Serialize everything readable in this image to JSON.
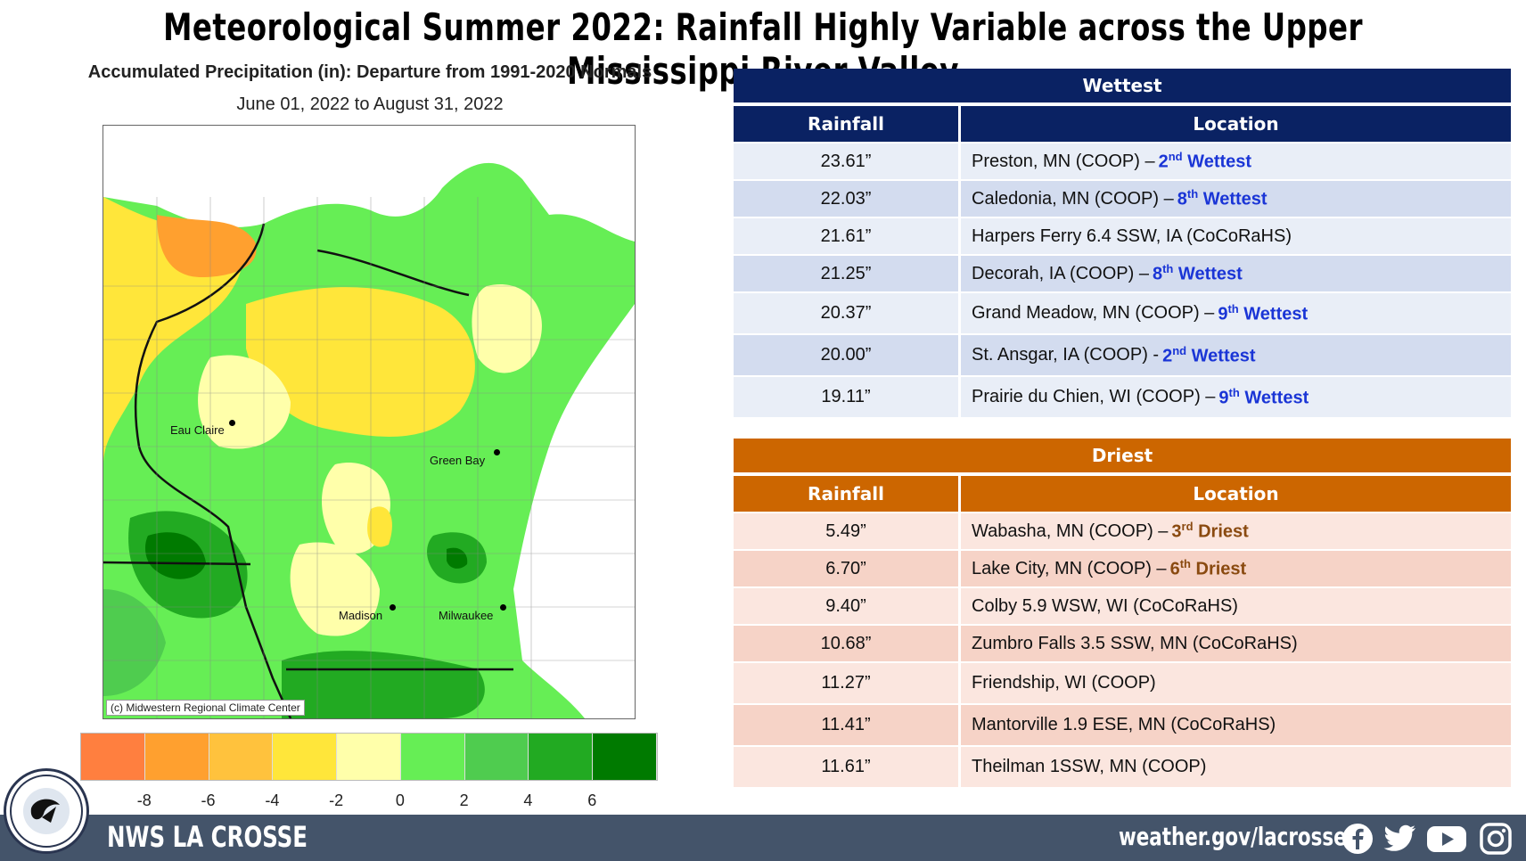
{
  "title": "Meteorological Summer 2022:  Rainfall Highly Variable across the Upper Mississippi River Valley",
  "map": {
    "title": "Accumulated Precipitation (in): Departure from 1991-2020 Normals",
    "dates": "June 01, 2022 to August 31, 2022",
    "copyright": "(c) Midwestern Regional Climate Center",
    "cities": [
      "Eau Claire",
      "Green Bay",
      "Madison",
      "Milwaukee"
    ],
    "legend_colors": [
      "#ff7f3f",
      "#ffa02f",
      "#ffc23d",
      "#ffe63a",
      "#ffffaa",
      "#66ee55",
      "#4fcc4f",
      "#22aa22",
      "#007a00"
    ],
    "legend_labels": [
      "-8",
      "-6",
      "-4",
      "-2",
      "0",
      "2",
      "4",
      "6"
    ]
  },
  "wettest": {
    "band": "Wettest",
    "col_rainfall": "Rainfall",
    "col_location": "Location",
    "rows": [
      {
        "rainfall": "23.61”",
        "location": "Preston, MN (COOP) –",
        "rank_num": "2",
        "rank_sup": "nd",
        "rank_word": "Wettest"
      },
      {
        "rainfall": "22.03”",
        "location": "Caledonia, MN (COOP) –",
        "rank_num": "8",
        "rank_sup": "th",
        "rank_word": "Wettest"
      },
      {
        "rainfall": "21.61”",
        "location": "Harpers Ferry 6.4 SSW, IA (CoCoRaHS)",
        "rank_num": "",
        "rank_sup": "",
        "rank_word": ""
      },
      {
        "rainfall": "21.25”",
        "location": "Decorah, IA (COOP) –",
        "rank_num": "8",
        "rank_sup": "th",
        "rank_word": "Wettest"
      },
      {
        "rainfall": "20.37”",
        "location": "Grand Meadow, MN (COOP) –",
        "rank_num": "9",
        "rank_sup": "th",
        "rank_word": "Wettest"
      },
      {
        "rainfall": "20.00”",
        "location": "St. Ansgar, IA (COOP) -",
        "rank_num": "2",
        "rank_sup": "nd",
        "rank_word": "Wettest"
      },
      {
        "rainfall": "19.11”",
        "location": "Prairie  du Chien, WI (COOP) –",
        "rank_num": "9",
        "rank_sup": "th",
        "rank_word": "Wettest"
      }
    ]
  },
  "driest": {
    "band": "Driest",
    "col_rainfall": "Rainfall",
    "col_location": "Location",
    "rows": [
      {
        "rainfall": "5.49”",
        "location": "Wabasha, MN (COOP) –",
        "rank_num": "3",
        "rank_sup": "rd",
        "rank_word": "Driest"
      },
      {
        "rainfall": "6.70”",
        "location": "Lake City, MN (COOP) –",
        "rank_num": "6",
        "rank_sup": "th",
        "rank_word": "Driest"
      },
      {
        "rainfall": "9.40”",
        "location": "Colby 5.9 WSW, WI (CoCoRaHS)",
        "rank_num": "",
        "rank_sup": "",
        "rank_word": ""
      },
      {
        "rainfall": "10.68”",
        "location": "Zumbro Falls 3.5 SSW, MN (CoCoRaHS)",
        "rank_num": "",
        "rank_sup": "",
        "rank_word": ""
      },
      {
        "rainfall": "11.27”",
        "location": "Friendship, WI (COOP)",
        "rank_num": "",
        "rank_sup": "",
        "rank_word": ""
      },
      {
        "rainfall": "11.41”",
        "location": "Mantorville 1.9 ESE, MN (CoCoRaHS)",
        "rank_num": "",
        "rank_sup": "",
        "rank_word": ""
      },
      {
        "rainfall": "11.61”",
        "location": "Theilman 1SSW, MN (COOP)",
        "rank_num": "",
        "rank_sup": "",
        "rank_word": ""
      }
    ]
  },
  "footer": {
    "brand": "NWS LA CROSSE",
    "url": "weather.gov/lacrosse",
    "logo_text": "NATIONAL WEATHER SERVICE LA CROSSE, WI",
    "social_icons": [
      "facebook-icon",
      "twitter-icon",
      "youtube-icon",
      "instagram-icon"
    ]
  }
}
